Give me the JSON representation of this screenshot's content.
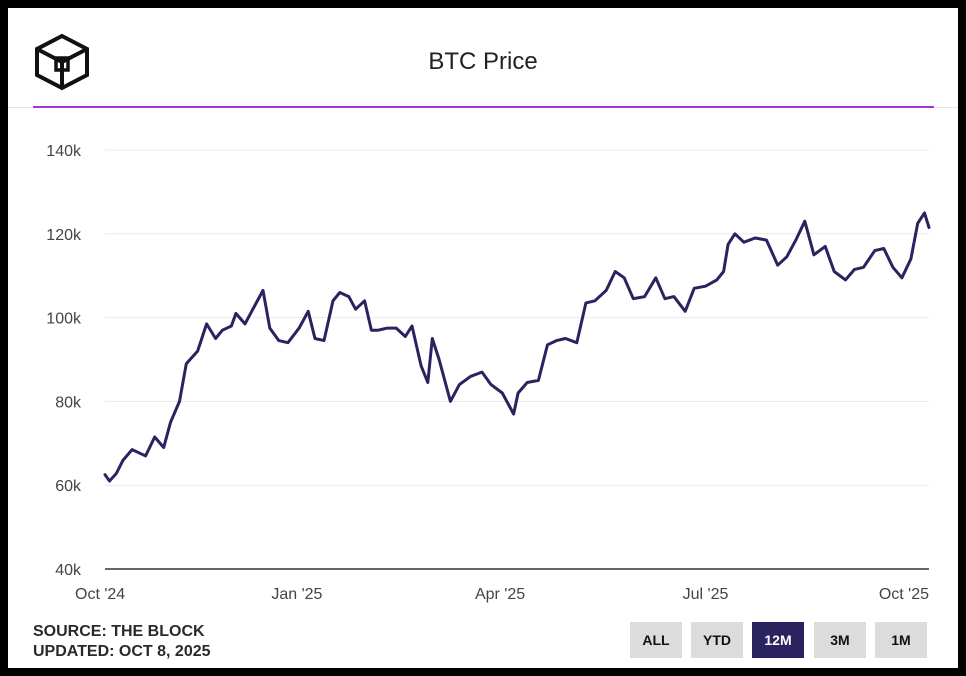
{
  "header": {
    "title": "BTC Price",
    "logo_icon": "the-block-cube-icon"
  },
  "footer": {
    "source": "SOURCE: THE BLOCK",
    "updated": "UPDATED: OCT 8, 2025"
  },
  "range_buttons": [
    {
      "label": "ALL",
      "active": false
    },
    {
      "label": "YTD",
      "active": false
    },
    {
      "label": "12M",
      "active": true
    },
    {
      "label": "3M",
      "active": false
    },
    {
      "label": "1M",
      "active": false
    }
  ],
  "colors": {
    "line": "#2b2260",
    "accent": "#a335d6",
    "active_button": "#2b2260",
    "grid": "#e9e9e9",
    "axis": "#333333"
  },
  "chart_data": {
    "type": "line",
    "title": "BTC Price",
    "xlabel": "",
    "ylabel": "",
    "ylim": [
      40000,
      140000
    ],
    "y_ticks": [
      {
        "value": 40000,
        "label": "40k"
      },
      {
        "value": 60000,
        "label": "60k"
      },
      {
        "value": 80000,
        "label": "80k"
      },
      {
        "value": 100000,
        "label": "100k"
      },
      {
        "value": 120000,
        "label": "120k"
      },
      {
        "value": 140000,
        "label": "140k"
      }
    ],
    "xlim": [
      "2024-10-08",
      "2025-10-08"
    ],
    "x_ticks": [
      {
        "date": "2024-10-01",
        "label": "Oct '24"
      },
      {
        "date": "2025-01-01",
        "label": "Jan '25"
      },
      {
        "date": "2025-04-01",
        "label": "Apr '25"
      },
      {
        "date": "2025-07-01",
        "label": "Jul '25"
      },
      {
        "date": "2025-10-01",
        "label": "Oct '25"
      }
    ],
    "grid": true,
    "legend": "none",
    "series": [
      {
        "x": [
          "2024-10-08",
          "2024-10-10",
          "2024-10-13",
          "2024-10-16",
          "2024-10-20",
          "2024-10-24",
          "2024-10-26",
          "2024-10-30",
          "2024-11-03",
          "2024-11-06",
          "2024-11-10",
          "2024-11-13",
          "2024-11-18",
          "2024-11-22",
          "2024-11-26",
          "2024-11-29",
          "2024-12-03",
          "2024-12-05",
          "2024-12-09",
          "2024-12-12",
          "2024-12-17",
          "2024-12-20",
          "2024-12-24",
          "2024-12-28",
          "2025-01-02",
          "2025-01-06",
          "2025-01-09",
          "2025-01-13",
          "2025-01-17",
          "2025-01-20",
          "2025-01-24",
          "2025-01-27",
          "2025-01-31",
          "2025-02-03",
          "2025-02-06",
          "2025-02-10",
          "2025-02-14",
          "2025-02-18",
          "2025-02-21",
          "2025-02-25",
          "2025-02-28",
          "2025-03-02",
          "2025-03-05",
          "2025-03-10",
          "2025-03-14",
          "2025-03-19",
          "2025-03-24",
          "2025-03-28",
          "2025-04-02",
          "2025-04-07",
          "2025-04-09",
          "2025-04-13",
          "2025-04-18",
          "2025-04-22",
          "2025-04-26",
          "2025-04-30",
          "2025-05-05",
          "2025-05-09",
          "2025-05-13",
          "2025-05-18",
          "2025-05-22",
          "2025-05-26",
          "2025-05-30",
          "2025-06-04",
          "2025-06-09",
          "2025-06-13",
          "2025-06-17",
          "2025-06-22",
          "2025-06-26",
          "2025-07-01",
          "2025-07-06",
          "2025-07-09",
          "2025-07-11",
          "2025-07-14",
          "2025-07-18",
          "2025-07-23",
          "2025-07-28",
          "2025-08-02",
          "2025-08-06",
          "2025-08-10",
          "2025-08-14",
          "2025-08-18",
          "2025-08-23",
          "2025-08-27",
          "2025-09-01",
          "2025-09-05",
          "2025-09-09",
          "2025-09-14",
          "2025-09-18",
          "2025-09-22",
          "2025-09-26",
          "2025-09-30",
          "2025-10-03",
          "2025-10-06",
          "2025-10-08"
        ],
        "values": [
          62500,
          61000,
          62800,
          66000,
          68500,
          67500,
          67000,
          71500,
          69000,
          75000,
          80000,
          89000,
          92000,
          98500,
          95000,
          97000,
          98000,
          101000,
          98500,
          101500,
          106500,
          97500,
          94500,
          94000,
          97500,
          101500,
          95000,
          94500,
          104000,
          106000,
          105000,
          102000,
          104000,
          97000,
          97000,
          97500,
          97500,
          95500,
          98000,
          88500,
          84500,
          95000,
          90000,
          80000,
          84000,
          86000,
          87000,
          84000,
          82000,
          77000,
          82000,
          84500,
          85000,
          93500,
          94500,
          95000,
          94000,
          103500,
          104000,
          106500,
          111000,
          109500,
          104500,
          105000,
          109500,
          104500,
          105000,
          101500,
          107000,
          107500,
          109000,
          111000,
          117500,
          120000,
          118000,
          119000,
          118500,
          112500,
          114500,
          118500,
          123000,
          115000,
          117000,
          111000,
          109000,
          111500,
          112000,
          116000,
          116500,
          112000,
          109500,
          114000,
          122500,
          125000,
          121500
        ]
      }
    ]
  }
}
